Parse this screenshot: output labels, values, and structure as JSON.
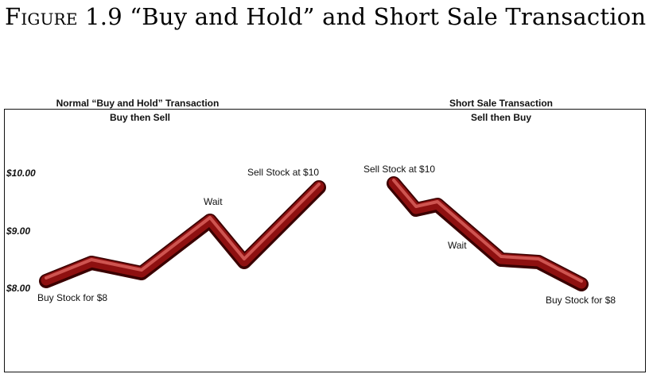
{
  "figure": {
    "title_prefix": "Figure 1.9",
    "title_text": "“Buy and Hold” and Short Sale  Transaction"
  },
  "left_panel": {
    "title": "Normal “Buy and Hold” Transaction",
    "subtitle": "Buy then Sell",
    "y_labels": [
      "$10.00",
      "$9.00",
      "$8.00"
    ],
    "annotations": {
      "start": "Buy Stock for $8",
      "middle": "Wait",
      "end": "Sell Stock at $10"
    }
  },
  "right_panel": {
    "title": "Short Sale Transaction",
    "subtitle": "Sell then Buy",
    "annotations": {
      "start": "Sell Stock at $10",
      "middle": "Wait",
      "end": "Buy Stock for $8"
    }
  },
  "colors": {
    "line_dark": "#3a0000",
    "line_mid": "#8e1010",
    "line_highlight": "#d9605c"
  }
}
